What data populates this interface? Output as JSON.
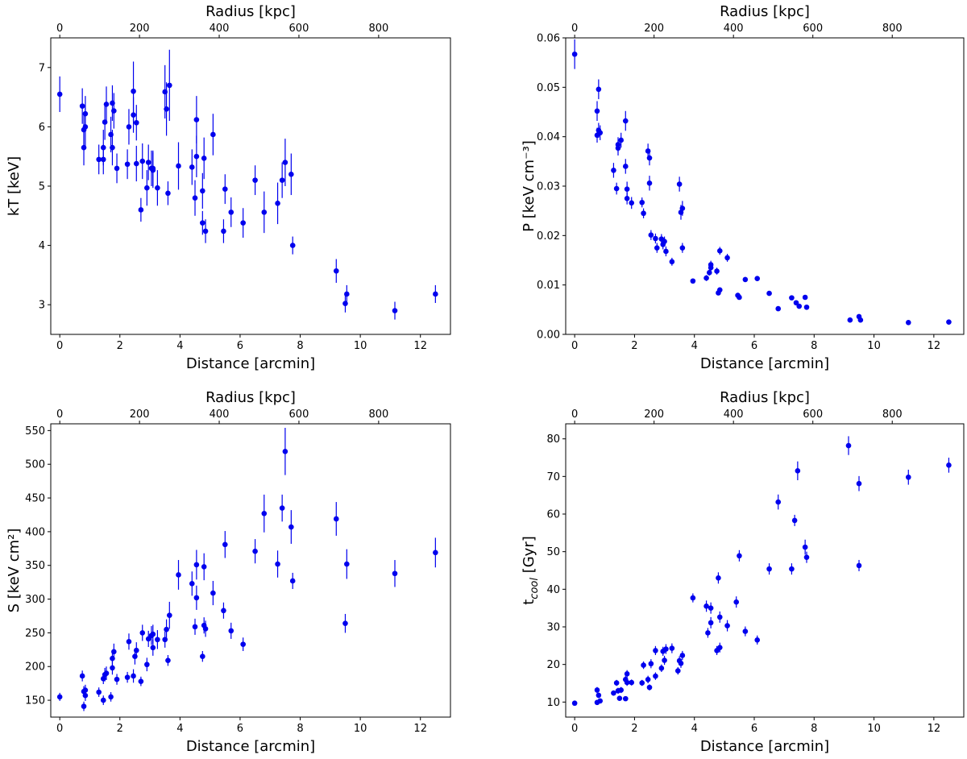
{
  "figure": {
    "point_color": "#0000ee"
  },
  "chart_data": [
    {
      "type": "scatter",
      "id": "kT",
      "xlabel": "Distance [arcmin]",
      "top_xlabel": "Radius [kpc]",
      "ylabel": "kT [keV]",
      "xlim": [
        -0.3,
        13.0
      ],
      "ylim": [
        2.5,
        7.5
      ],
      "xticks": [
        0,
        2,
        4,
        6,
        8,
        10,
        12
      ],
      "top_xticks": [
        0,
        200,
        400,
        600,
        800
      ],
      "top_kpc_per_arcmin": 75.4,
      "yticks": [
        3,
        4,
        5,
        6,
        7
      ],
      "ytick_labels": [
        "3",
        "4",
        "5",
        "6",
        "7"
      ],
      "points": [
        [
          0.0,
          6.55,
          0.3
        ],
        [
          0.75,
          6.35,
          0.3
        ],
        [
          0.8,
          5.95,
          0.3
        ],
        [
          0.8,
          5.65,
          0.3
        ],
        [
          0.85,
          6.22,
          0.3
        ],
        [
          0.85,
          6.0,
          0.35
        ],
        [
          1.3,
          5.45,
          0.25
        ],
        [
          1.45,
          5.65,
          0.3
        ],
        [
          1.45,
          5.45,
          0.25
        ],
        [
          1.5,
          6.08,
          0.3
        ],
        [
          1.55,
          6.38,
          0.3
        ],
        [
          1.7,
          5.87,
          0.3
        ],
        [
          1.75,
          6.4,
          0.3
        ],
        [
          1.75,
          5.65,
          0.3
        ],
        [
          1.8,
          6.27,
          0.3
        ],
        [
          1.9,
          5.3,
          0.25
        ],
        [
          2.25,
          5.37,
          0.25
        ],
        [
          2.3,
          6.0,
          0.3
        ],
        [
          2.45,
          6.6,
          0.5
        ],
        [
          2.45,
          6.2,
          0.3
        ],
        [
          2.55,
          6.07,
          0.3
        ],
        [
          2.55,
          5.38,
          0.3
        ],
        [
          2.7,
          4.6,
          0.2
        ],
        [
          2.75,
          5.42,
          0.3
        ],
        [
          2.9,
          4.97,
          0.3
        ],
        [
          2.95,
          5.4,
          0.3
        ],
        [
          3.05,
          5.3,
          0.3
        ],
        [
          3.1,
          5.3,
          0.3
        ],
        [
          3.1,
          5.27,
          0.3
        ],
        [
          3.25,
          4.97,
          0.3
        ],
        [
          3.5,
          6.59,
          0.45
        ],
        [
          3.55,
          6.3,
          0.45
        ],
        [
          3.6,
          4.88,
          0.2
        ],
        [
          3.65,
          6.7,
          0.6
        ],
        [
          3.95,
          5.34,
          0.4
        ],
        [
          4.4,
          5.32,
          0.3
        ],
        [
          4.5,
          4.8,
          0.3
        ],
        [
          4.55,
          6.12,
          0.4
        ],
        [
          4.55,
          5.5,
          0.35
        ],
        [
          4.75,
          4.38,
          0.2
        ],
        [
          4.75,
          4.92,
          0.3
        ],
        [
          4.8,
          5.47,
          0.35
        ],
        [
          4.85,
          4.24,
          0.2
        ],
        [
          5.1,
          5.87,
          0.35
        ],
        [
          5.45,
          4.24,
          0.2
        ],
        [
          5.5,
          4.95,
          0.25
        ],
        [
          5.7,
          4.56,
          0.25
        ],
        [
          6.1,
          4.38,
          0.25
        ],
        [
          6.5,
          5.1,
          0.25
        ],
        [
          6.8,
          4.56,
          0.35
        ],
        [
          7.25,
          4.71,
          0.35
        ],
        [
          7.4,
          5.1,
          0.3
        ],
        [
          7.5,
          5.4,
          0.4
        ],
        [
          7.7,
          5.2,
          0.35
        ],
        [
          7.75,
          4.0,
          0.15
        ],
        [
          9.2,
          3.57,
          0.2
        ],
        [
          9.5,
          3.02,
          0.15
        ],
        [
          9.55,
          3.18,
          0.15
        ],
        [
          11.15,
          2.9,
          0.15
        ],
        [
          12.5,
          3.18,
          0.15
        ]
      ]
    },
    {
      "type": "scatter",
      "id": "P",
      "xlabel": "Distance [arcmin]",
      "top_xlabel": "Radius [kpc]",
      "ylabel": "P [keV cm⁻³]",
      "xlim": [
        -0.3,
        13.0
      ],
      "ylim": [
        0.0,
        0.06
      ],
      "xticks": [
        0,
        2,
        4,
        6,
        8,
        10,
        12
      ],
      "top_xticks": [
        0,
        200,
        400,
        600,
        800
      ],
      "top_kpc_per_arcmin": 75.4,
      "yticks": [
        0.0,
        0.01,
        0.02,
        0.03,
        0.04,
        0.05,
        0.06
      ],
      "ytick_labels": [
        "0.00",
        "0.01",
        "0.02",
        "0.03",
        "0.04",
        "0.05",
        "0.06"
      ],
      "points": [
        [
          0.0,
          0.0567,
          0.003
        ],
        [
          0.75,
          0.0403,
          0.0015
        ],
        [
          0.75,
          0.0452,
          0.002
        ],
        [
          0.8,
          0.0413,
          0.0015
        ],
        [
          0.8,
          0.0496,
          0.002
        ],
        [
          0.85,
          0.0408,
          0.0015
        ],
        [
          1.3,
          0.0332,
          0.0015
        ],
        [
          1.4,
          0.0295,
          0.0012
        ],
        [
          1.45,
          0.0377,
          0.0015
        ],
        [
          1.45,
          0.0384,
          0.0015
        ],
        [
          1.55,
          0.0393,
          0.0015
        ],
        [
          1.7,
          0.0432,
          0.002
        ],
        [
          1.7,
          0.034,
          0.0015
        ],
        [
          1.75,
          0.0275,
          0.0012
        ],
        [
          1.75,
          0.0294,
          0.0015
        ],
        [
          1.9,
          0.0266,
          0.0012
        ],
        [
          2.25,
          0.0267,
          0.001
        ],
        [
          2.3,
          0.0245,
          0.001
        ],
        [
          2.45,
          0.0371,
          0.0015
        ],
        [
          2.5,
          0.0357,
          0.0015
        ],
        [
          2.5,
          0.0306,
          0.0015
        ],
        [
          2.55,
          0.0201,
          0.001
        ],
        [
          2.7,
          0.0194,
          0.001
        ],
        [
          2.75,
          0.0175,
          0.001
        ],
        [
          2.9,
          0.0193,
          0.001
        ],
        [
          2.95,
          0.0182,
          0.001
        ],
        [
          3.0,
          0.0188,
          0.001
        ],
        [
          3.05,
          0.0168,
          0.001
        ],
        [
          3.25,
          0.0147,
          0.0008
        ],
        [
          3.5,
          0.0304,
          0.0015
        ],
        [
          3.55,
          0.0247,
          0.0015
        ],
        [
          3.6,
          0.0255,
          0.0015
        ],
        [
          3.6,
          0.0175,
          0.001
        ],
        [
          3.95,
          0.0108,
          0.0005
        ],
        [
          4.4,
          0.0114,
          0.0006
        ],
        [
          4.5,
          0.0125,
          0.0006
        ],
        [
          4.55,
          0.0135,
          0.0007
        ],
        [
          4.55,
          0.0141,
          0.0008
        ],
        [
          4.75,
          0.0128,
          0.0007
        ],
        [
          4.8,
          0.0084,
          0.0005
        ],
        [
          4.85,
          0.0169,
          0.0008
        ],
        [
          4.85,
          0.009,
          0.0005
        ],
        [
          5.1,
          0.0155,
          0.0008
        ],
        [
          5.45,
          0.0079,
          0.0004
        ],
        [
          5.5,
          0.0075,
          0.0004
        ],
        [
          5.7,
          0.0111,
          0.0005
        ],
        [
          6.1,
          0.0113,
          0.0005
        ],
        [
          6.5,
          0.0083,
          0.0004
        ],
        [
          6.8,
          0.0052,
          0.0003
        ],
        [
          7.25,
          0.0074,
          0.0004
        ],
        [
          7.4,
          0.0064,
          0.0004
        ],
        [
          7.5,
          0.0057,
          0.0003
        ],
        [
          7.7,
          0.0075,
          0.0004
        ],
        [
          7.75,
          0.0055,
          0.0003
        ],
        [
          9.2,
          0.0029,
          0.0002
        ],
        [
          9.5,
          0.0036,
          0.0003
        ],
        [
          9.55,
          0.0029,
          0.0002
        ],
        [
          11.15,
          0.0024,
          0.0002
        ],
        [
          12.5,
          0.0025,
          0.0002
        ]
      ]
    },
    {
      "type": "scatter",
      "id": "S",
      "xlabel": "Distance [arcmin]",
      "top_xlabel": "Radius [kpc]",
      "ylabel": "S [keV cm²]",
      "xlim": [
        -0.3,
        13.0
      ],
      "ylim": [
        125,
        560
      ],
      "xticks": [
        0,
        2,
        4,
        6,
        8,
        10,
        12
      ],
      "top_xticks": [
        0,
        200,
        400,
        600,
        800
      ],
      "top_kpc_per_arcmin": 75.4,
      "yticks": [
        150,
        200,
        250,
        300,
        350,
        400,
        450,
        500,
        550
      ],
      "ytick_labels": [
        "150",
        "200",
        "250",
        "300",
        "350",
        "400",
        "450",
        "500",
        "550"
      ],
      "points": [
        [
          0.0,
          155,
          6
        ],
        [
          0.75,
          186,
          8
        ],
        [
          0.8,
          163,
          8
        ],
        [
          0.8,
          141,
          7
        ],
        [
          0.85,
          165,
          8
        ],
        [
          0.85,
          157,
          8
        ],
        [
          1.3,
          162,
          7
        ],
        [
          1.45,
          150,
          7
        ],
        [
          1.45,
          182,
          8
        ],
        [
          1.5,
          188,
          10
        ],
        [
          1.55,
          190,
          10
        ],
        [
          1.7,
          155,
          7
        ],
        [
          1.75,
          198,
          10
        ],
        [
          1.75,
          212,
          10
        ],
        [
          1.8,
          222,
          12
        ],
        [
          1.9,
          181,
          8
        ],
        [
          2.25,
          184,
          8
        ],
        [
          2.3,
          237,
          12
        ],
        [
          2.45,
          186,
          10
        ],
        [
          2.5,
          215,
          12
        ],
        [
          2.55,
          224,
          12
        ],
        [
          2.7,
          178,
          7
        ],
        [
          2.75,
          250,
          12
        ],
        [
          2.9,
          203,
          10
        ],
        [
          2.95,
          241,
          12
        ],
        [
          3.05,
          246,
          14
        ],
        [
          3.1,
          248,
          14
        ],
        [
          3.1,
          228,
          12
        ],
        [
          3.25,
          240,
          14
        ],
        [
          3.5,
          240,
          12
        ],
        [
          3.55,
          255,
          15
        ],
        [
          3.6,
          209,
          8
        ],
        [
          3.65,
          276,
          20
        ],
        [
          3.95,
          336,
          22
        ],
        [
          4.4,
          323,
          18
        ],
        [
          4.5,
          259,
          12
        ],
        [
          4.55,
          351,
          22
        ],
        [
          4.55,
          302,
          18
        ],
        [
          4.75,
          215,
          8
        ],
        [
          4.8,
          348,
          20
        ],
        [
          4.8,
          261,
          12
        ],
        [
          4.85,
          256,
          12
        ],
        [
          5.1,
          309,
          18
        ],
        [
          5.45,
          283,
          12
        ],
        [
          5.5,
          381,
          20
        ],
        [
          5.7,
          253,
          12
        ],
        [
          6.1,
          233,
          10
        ],
        [
          6.5,
          371,
          18
        ],
        [
          6.8,
          427,
          28
        ],
        [
          7.25,
          352,
          20
        ],
        [
          7.4,
          435,
          20
        ],
        [
          7.5,
          519,
          35
        ],
        [
          7.7,
          407,
          25
        ],
        [
          7.75,
          327,
          12
        ],
        [
          9.2,
          419,
          25
        ],
        [
          9.5,
          264,
          14
        ],
        [
          9.55,
          352,
          22
        ],
        [
          11.15,
          338,
          20
        ],
        [
          12.5,
          369,
          22
        ]
      ]
    },
    {
      "type": "scatter",
      "id": "tcool",
      "xlabel": "Distance [arcmin]",
      "top_xlabel": "Radius [kpc]",
      "ylabel": "t_cool [Gyr]",
      "ylabel_main": "t",
      "ylabel_sub": "cool",
      "ylabel_rest": " [Gyr]",
      "xlim": [
        -0.3,
        13.0
      ],
      "ylim": [
        6,
        84
      ],
      "xticks": [
        0,
        2,
        4,
        6,
        8,
        10,
        12
      ],
      "top_xticks": [
        0,
        200,
        400,
        600,
        800
      ],
      "top_kpc_per_arcmin": 75.4,
      "yticks": [
        10,
        20,
        30,
        40,
        50,
        60,
        70,
        80
      ],
      "ytick_labels": [
        "10",
        "20",
        "30",
        "40",
        "50",
        "60",
        "70",
        "80"
      ],
      "points": [
        [
          0.0,
          9.7,
          0.5
        ],
        [
          0.75,
          13.2,
          0.8
        ],
        [
          0.75,
          9.9,
          0.5
        ],
        [
          0.8,
          11.8,
          0.7
        ],
        [
          0.85,
          10.3,
          0.5
        ],
        [
          1.3,
          12.4,
          0.7
        ],
        [
          1.4,
          15.1,
          0.8
        ],
        [
          1.45,
          13.0,
          0.8
        ],
        [
          1.5,
          11.0,
          0.6
        ],
        [
          1.55,
          13.2,
          0.8
        ],
        [
          1.7,
          16.0,
          1.0
        ],
        [
          1.7,
          10.9,
          0.6
        ],
        [
          1.75,
          17.5,
          1.0
        ],
        [
          1.75,
          15.2,
          0.9
        ],
        [
          1.9,
          15.2,
          0.8
        ],
        [
          2.25,
          15.1,
          0.8
        ],
        [
          2.3,
          19.8,
          1.0
        ],
        [
          2.45,
          16.0,
          1.0
        ],
        [
          2.5,
          13.9,
          0.8
        ],
        [
          2.55,
          20.2,
          1.2
        ],
        [
          2.7,
          16.9,
          1.0
        ],
        [
          2.7,
          23.7,
          1.2
        ],
        [
          2.9,
          19.0,
          1.0
        ],
        [
          2.95,
          23.5,
          1.2
        ],
        [
          3.0,
          21.1,
          1.2
        ],
        [
          3.05,
          24.1,
          1.3
        ],
        [
          3.25,
          24.3,
          1.3
        ],
        [
          3.45,
          18.3,
          1.0
        ],
        [
          3.5,
          21.0,
          1.2
        ],
        [
          3.55,
          20.3,
          1.2
        ],
        [
          3.6,
          22.4,
          1.2
        ],
        [
          3.95,
          37.7,
          1.2
        ],
        [
          4.4,
          35.5,
          1.5
        ],
        [
          4.45,
          28.4,
          1.3
        ],
        [
          4.55,
          31.1,
          1.5
        ],
        [
          4.55,
          35.0,
          1.5
        ],
        [
          4.75,
          23.7,
          1.2
        ],
        [
          4.8,
          43.0,
          1.5
        ],
        [
          4.85,
          24.5,
          1.3
        ],
        [
          4.85,
          32.6,
          1.5
        ],
        [
          5.1,
          30.3,
          1.5
        ],
        [
          5.4,
          36.6,
          1.5
        ],
        [
          5.5,
          48.9,
          1.5
        ],
        [
          5.7,
          28.8,
          1.3
        ],
        [
          6.1,
          26.5,
          1.2
        ],
        [
          6.5,
          45.4,
          1.5
        ],
        [
          6.8,
          63.2,
          2.0
        ],
        [
          7.25,
          45.4,
          1.5
        ],
        [
          7.35,
          58.3,
          1.5
        ],
        [
          7.45,
          71.5,
          2.5
        ],
        [
          7.7,
          51.2,
          2.0
        ],
        [
          7.75,
          48.5,
          1.5
        ],
        [
          9.15,
          78.2,
          2.5
        ],
        [
          9.5,
          68.1,
          2.0
        ],
        [
          9.5,
          46.3,
          1.5
        ],
        [
          11.15,
          69.8,
          2.0
        ],
        [
          12.5,
          73.0,
          2.0
        ]
      ]
    }
  ]
}
